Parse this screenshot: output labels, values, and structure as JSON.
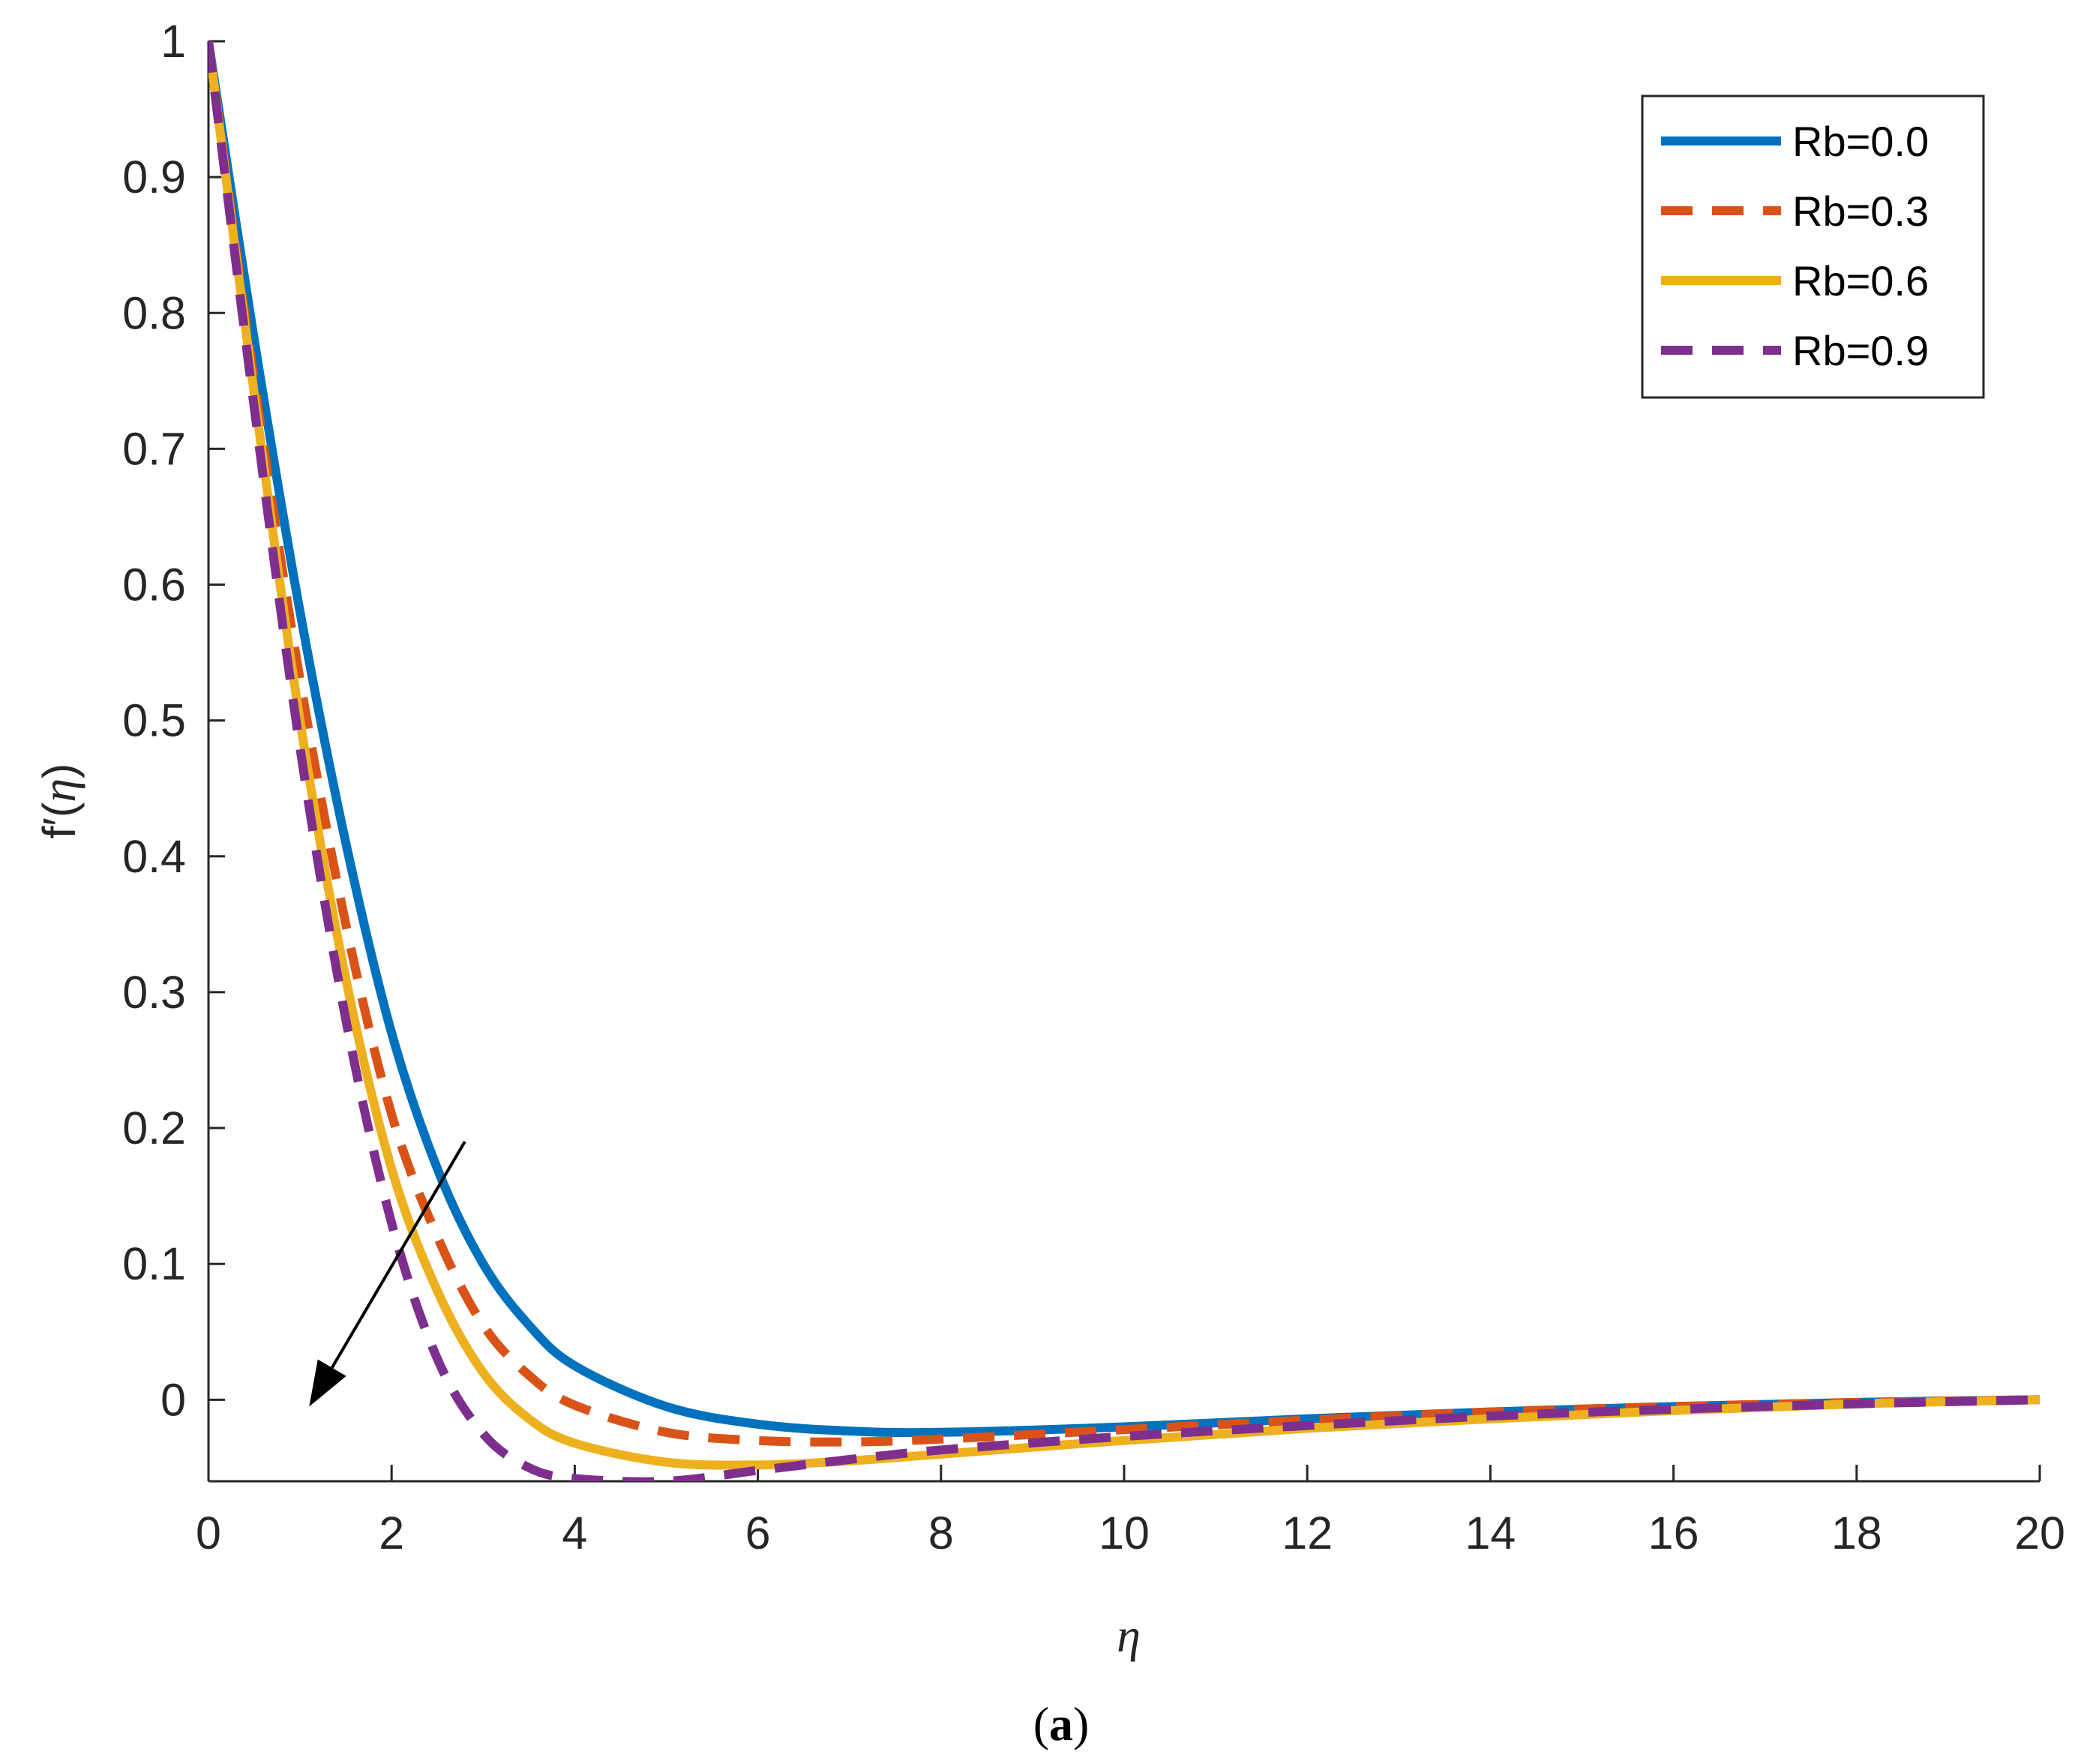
{
  "chart_data": {
    "type": "line",
    "title": "",
    "xlabel": "η",
    "ylabel": "f′(η)",
    "ylabel_parts": {
      "base": "f",
      "prime": "′",
      "open": "(",
      "var": "η",
      "close": ")"
    },
    "xlim": [
      0,
      20
    ],
    "ylim": [
      -0.06,
      1
    ],
    "x_ticks": [
      0,
      2,
      4,
      6,
      8,
      10,
      12,
      14,
      16,
      18,
      20
    ],
    "x_tick_labels": [
      "0",
      "2",
      "4",
      "6",
      "8",
      "10",
      "12",
      "14",
      "16",
      "18",
      "20"
    ],
    "y_ticks": [
      0,
      0.1,
      0.2,
      0.3,
      0.4,
      0.5,
      0.6,
      0.7,
      0.8,
      0.9,
      1
    ],
    "y_tick_labels": [
      "0",
      "0.1",
      "0.2",
      "0.3",
      "0.4",
      "0.5",
      "0.6",
      "0.7",
      "0.8",
      "0.9",
      "1"
    ],
    "grid": false,
    "legend_position": "top-right",
    "annotation": {
      "type": "arrow",
      "from": [
        2.8,
        0.19
      ],
      "to": [
        1.1,
        -0.005
      ],
      "meaning": "increasing Rb"
    },
    "caption": {
      "open": "(",
      "letter": "a",
      "close": ")"
    },
    "x": [
      0,
      0.5,
      1,
      1.5,
      2,
      2.5,
      3,
      3.5,
      4,
      5,
      6,
      7,
      8,
      10,
      12,
      14,
      16,
      18,
      20
    ],
    "series": [
      {
        "name": "Rb=0.0",
        "color": "#0072BD",
        "dash": "solid",
        "values": [
          1,
          0.78,
          0.58,
          0.41,
          0.27,
          0.17,
          0.1,
          0.055,
          0.025,
          -0.005,
          -0.018,
          -0.023,
          -0.024,
          -0.02,
          -0.014,
          -0.009,
          -0.005,
          -0.002,
          0
        ]
      },
      {
        "name": "Rb=0.3",
        "color": "#D95319",
        "dash": "dashed",
        "values": [
          1,
          0.75,
          0.53,
          0.35,
          0.21,
          0.12,
          0.055,
          0.018,
          -0.004,
          -0.024,
          -0.03,
          -0.031,
          -0.029,
          -0.022,
          -0.015,
          -0.009,
          -0.005,
          -0.002,
          0
        ]
      },
      {
        "name": "Rb=0.6",
        "color": "#EDB120",
        "dash": "solid",
        "values": [
          1,
          0.74,
          0.5,
          0.31,
          0.17,
          0.08,
          0.02,
          -0.014,
          -0.032,
          -0.046,
          -0.048,
          -0.045,
          -0.04,
          -0.03,
          -0.021,
          -0.014,
          -0.008,
          -0.003,
          0
        ]
      },
      {
        "name": "Rb=0.9",
        "color": "#7E2F8E",
        "dash": "dashed",
        "values": [
          1,
          0.73,
          0.48,
          0.28,
          0.13,
          0.03,
          -0.025,
          -0.05,
          -0.058,
          -0.06,
          -0.052,
          -0.044,
          -0.037,
          -0.027,
          -0.019,
          -0.012,
          -0.007,
          -0.003,
          0
        ]
      }
    ]
  }
}
